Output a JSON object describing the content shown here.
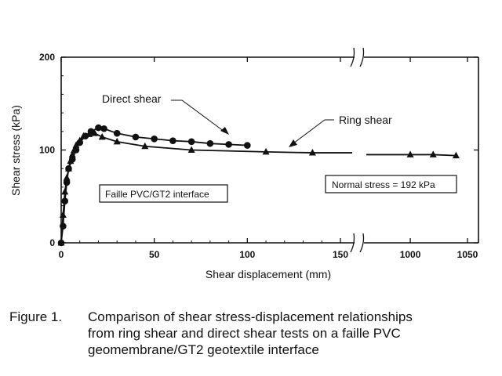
{
  "chart_data": {
    "type": "line",
    "ylabel": "Shear stress (kPa)",
    "xlabel": "Shear displacement (mm)",
    "ylim": [
      0,
      200
    ],
    "x_segments": [
      {
        "xlim": [
          0,
          150
        ],
        "ticks": [
          "0",
          "50",
          "100",
          "150"
        ]
      },
      {
        "xlim": [
          965,
          1050
        ],
        "ticks": [
          "1000",
          "1050"
        ]
      }
    ],
    "y_ticks": [
      "0",
      "100",
      "200"
    ],
    "axis_break": true,
    "grid": false,
    "series": [
      {
        "name": "Direct shear",
        "marker": "circle",
        "x": [
          0,
          1,
          2,
          3,
          4,
          6,
          8,
          10,
          13,
          16,
          20,
          23,
          30,
          40,
          50,
          60,
          70,
          80,
          90,
          100
        ],
        "y": [
          0,
          18,
          45,
          65,
          80,
          90,
          100,
          108,
          115,
          120,
          124,
          123,
          118,
          114,
          112,
          110,
          109,
          107,
          106,
          105
        ]
      },
      {
        "name": "Ring shear",
        "marker": "triangle",
        "x": [
          0,
          1,
          2,
          3,
          4,
          5,
          6,
          7,
          8,
          10,
          12,
          15,
          18,
          22,
          30,
          45,
          70,
          110,
          135,
          1000,
          1020,
          1040
        ],
        "y": [
          0,
          30,
          55,
          70,
          80,
          88,
          95,
          100,
          105,
          110,
          115,
          117,
          118,
          114,
          109,
          104,
          100,
          98,
          97,
          95,
          95,
          94
        ]
      }
    ],
    "annotations": [
      "Faille PVC/GT2 interface",
      "Normal stress = 192 kPa"
    ]
  },
  "caption": {
    "label": "Figure 1.",
    "lines": [
      "Comparison of shear stress-displacement relationships",
      "from ring shear and direct shear tests on a faille PVC",
      "geomembrane/GT2 geotextile interface"
    ]
  },
  "colors": {
    "ink": "#111111",
    "background": "#ffffff"
  }
}
